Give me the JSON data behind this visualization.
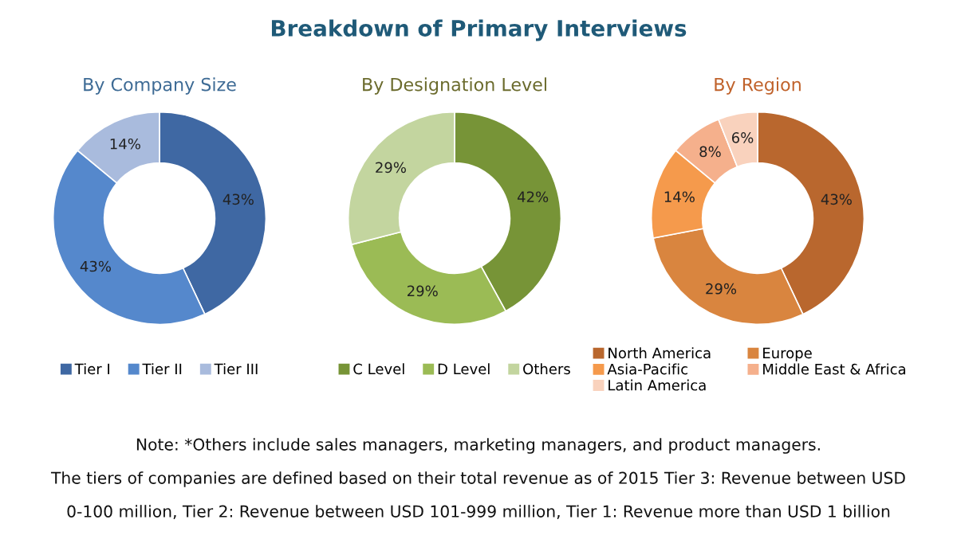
{
  "chart_data": [
    {
      "type": "donut",
      "title": "By Company Size",
      "categories": [
        "Tier I",
        "Tier II",
        "Tier III"
      ],
      "values": [
        43,
        43,
        14
      ],
      "value_labels": [
        "43%",
        "43%",
        "14%"
      ],
      "colors": [
        "#3f68a3",
        "#5588cc",
        "#a9bbdd"
      ],
      "legend": "bottom",
      "annotations": [
        "Breakdown of Primary Interviews",
        "Note: *Others include sales managers, marketing managers, and product managers.",
        "The tiers of companies are defined based on their total revenue as of 2015 Tier 3: Revenue between USD",
        "0-100 million, Tier 2: Revenue between USD 101-999 million, Tier 1: Revenue more than USD 1 billion"
      ]
    },
    {
      "type": "donut",
      "title": "By Designation Level",
      "categories": [
        "C Level",
        "D Level",
        "Others"
      ],
      "values": [
        42,
        29,
        29
      ],
      "value_labels": [
        "42%",
        "29%",
        "29%"
      ],
      "colors": [
        "#779437",
        "#9bbb55",
        "#c3d59f"
      ],
      "legend": "bottom"
    },
    {
      "type": "donut",
      "title": "By Region",
      "categories": [
        "North America",
        "Europe",
        "Asia-Pacific",
        "Middle East & Africa",
        "Latin America"
      ],
      "values": [
        43,
        29,
        14,
        8,
        6
      ],
      "value_labels": [
        "43%",
        "29%",
        "14%",
        "8%",
        "6%"
      ],
      "colors": [
        "#b9672e",
        "#d9853f",
        "#f59a4c",
        "#f5b08c",
        "#f9d2bd"
      ],
      "legend": "bottom"
    }
  ]
}
